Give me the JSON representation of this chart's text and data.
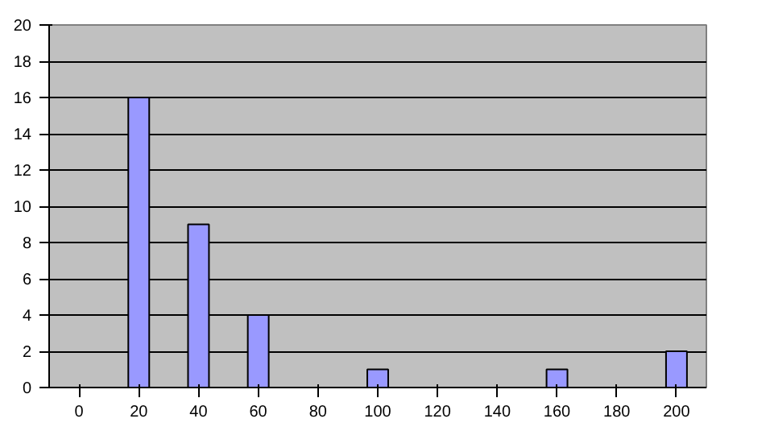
{
  "chart_data": {
    "type": "bar",
    "categories": [
      "0",
      "20",
      "40",
      "60",
      "80",
      "100",
      "120",
      "140",
      "160",
      "180",
      "200"
    ],
    "series": [
      {
        "color": "#9999ff",
        "values": [
          0,
          16,
          9,
          4,
          0,
          1,
          0,
          0,
          1,
          0,
          2
        ]
      }
    ],
    "ylim": [
      0,
      20
    ],
    "yticks": [
      0,
      2,
      4,
      6,
      8,
      10,
      12,
      14,
      16,
      18,
      20
    ],
    "grid": "y"
  }
}
